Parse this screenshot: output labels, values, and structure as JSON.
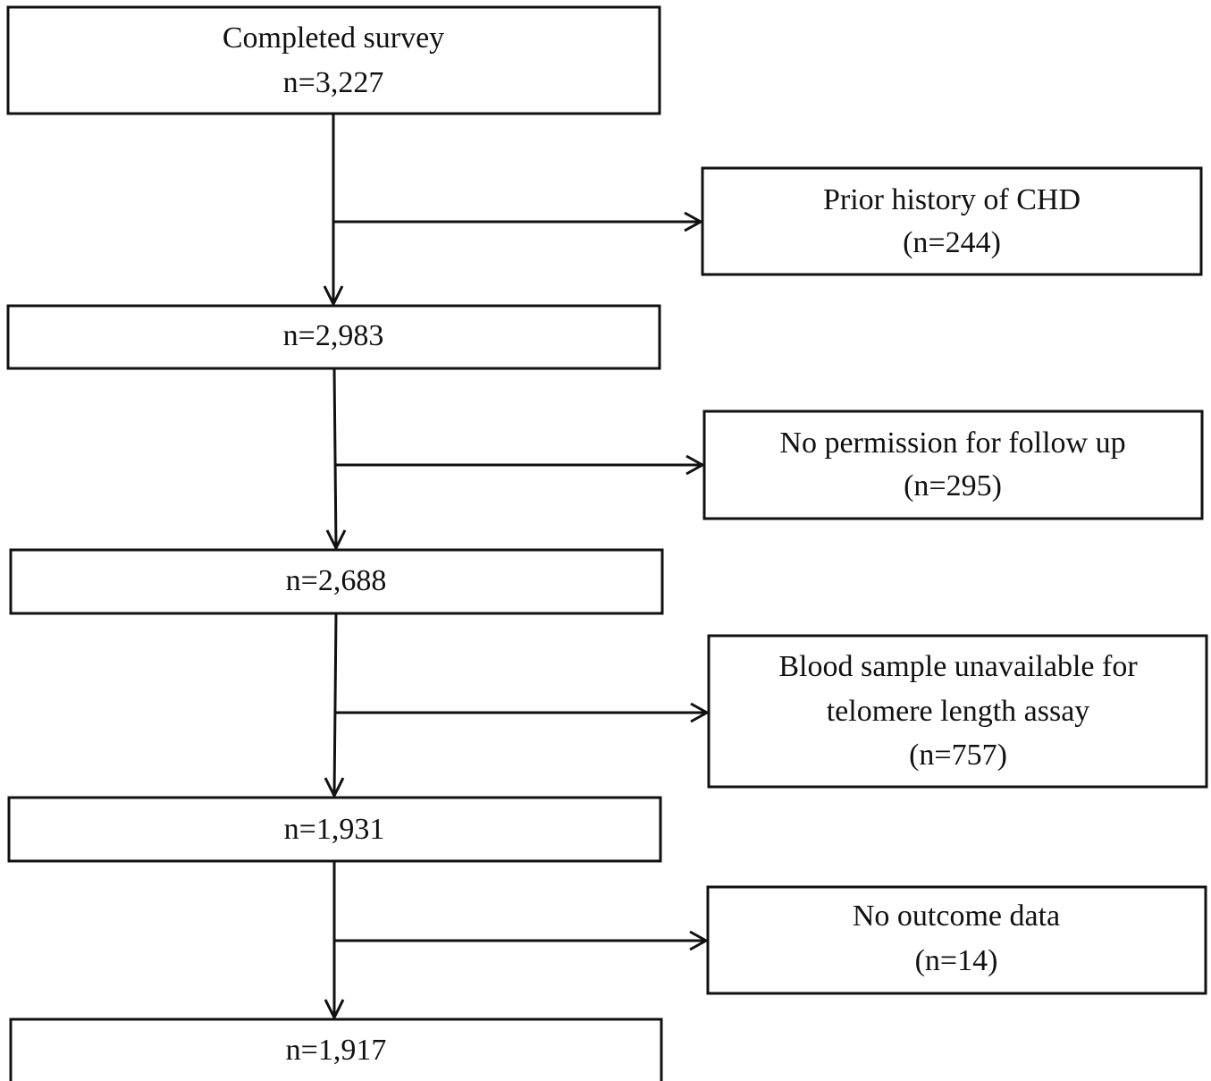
{
  "nodes": [
    {
      "lines": [
        "Completed survey",
        "n=3,227"
      ]
    },
    {
      "lines": [
        "n=2,983"
      ]
    },
    {
      "lines": [
        "n=2,688"
      ]
    },
    {
      "lines": [
        "n=1,931"
      ]
    },
    {
      "lines": [
        "n=1,917"
      ]
    }
  ],
  "exclusions": [
    {
      "lines": [
        "Prior history of CHD",
        "(n=244)"
      ]
    },
    {
      "lines": [
        "No permission for follow up",
        "(n=295)"
      ]
    },
    {
      "lines": [
        "Blood sample unavailable for",
        "telomere length assay",
        "(n=757)"
      ]
    },
    {
      "lines": [
        "No outcome data",
        "(n=14)"
      ]
    }
  ]
}
